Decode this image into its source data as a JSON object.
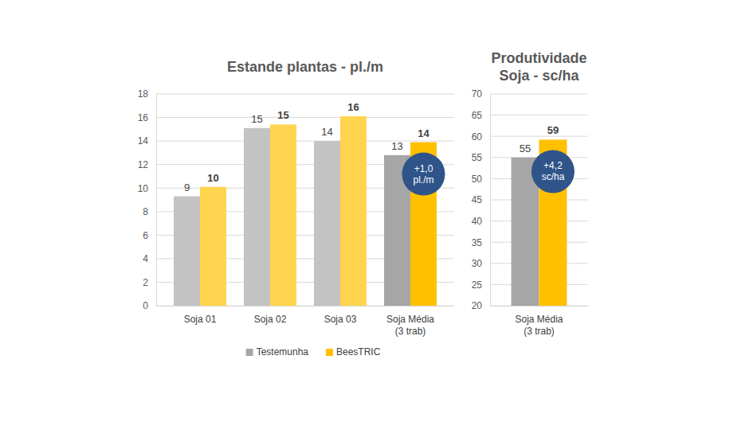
{
  "chart_data": [
    {
      "type": "bar",
      "title": "Estande plantas - pl./m",
      "categories": [
        "Soja 01",
        "Soja 02",
        "Soja 03",
        "Soja Média\n(3 trab)"
      ],
      "series": [
        {
          "name": "Testemunha",
          "color": "#a6a6a6",
          "colors": [
            "#c3c3c3",
            "#c3c3c3",
            "#c3c3c3",
            "#a6a6a6"
          ],
          "values": [
            9.3,
            15.1,
            14.0,
            12.8
          ],
          "value_labels": [
            "9",
            "15",
            "14",
            "13"
          ]
        },
        {
          "name": "BeesTRIC",
          "color": "#ffc000",
          "colors": [
            "#ffd54f",
            "#ffd54f",
            "#ffd54f",
            "#ffc000"
          ],
          "values": [
            10.1,
            15.4,
            16.1,
            13.9
          ],
          "value_labels": [
            "10",
            "15",
            "16",
            "14"
          ]
        }
      ],
      "ylim": [
        0,
        18
      ],
      "yticks": [
        0,
        2,
        4,
        6,
        8,
        10,
        12,
        14,
        16,
        18
      ],
      "grid": true,
      "data_labels": true,
      "legend": "bottom",
      "annotations": [
        {
          "text": "+1,0\npl./m",
          "category": "Soja Média\n(3 trab)"
        }
      ]
    },
    {
      "type": "bar",
      "title": "Produtividade\nSoja - sc/ha",
      "categories": [
        "Soja Média\n(3 trab)"
      ],
      "series": [
        {
          "color": "#a6a6a6",
          "values": [
            55.0
          ],
          "value_labels": [
            "55"
          ]
        },
        {
          "color": "#ffc000",
          "values": [
            59.2
          ],
          "value_labels": [
            "59"
          ]
        }
      ],
      "ylim": [
        20,
        70
      ],
      "yticks": [
        20,
        25,
        30,
        35,
        40,
        45,
        50,
        55,
        60,
        65,
        70
      ],
      "grid": true,
      "data_labels": true,
      "annotations": [
        {
          "text": "+4,2\nsc/ha",
          "category": "Soja Média\n(3 trab)"
        }
      ]
    }
  ]
}
